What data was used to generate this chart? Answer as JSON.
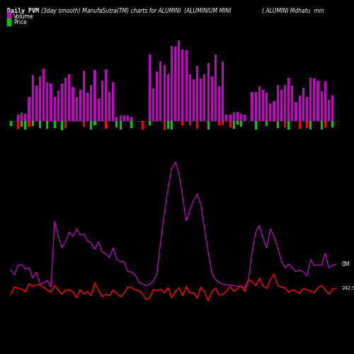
{
  "title_main": "Daily PVM",
  "title_sub": "(3day smooth) ManufaSutra(TM) charts for ALUMINI",
  "title_right1": "(ALUMINIUM MINI",
  "title_right2": "( ALUMINI Mdhatu  min",
  "legend_volume": "Volume",
  "legend_price": "Price",
  "label_0M": "0M",
  "label_price_end": "242.90",
  "bg_color": "#000000",
  "volume_color_pos": "#cc00cc",
  "volume_color_neg": "#ff0000",
  "volume_color_green": "#00cc00",
  "price_color": "#ff0000",
  "measure_color": "#cc00cc",
  "n_bars": 90,
  "seed": 7
}
